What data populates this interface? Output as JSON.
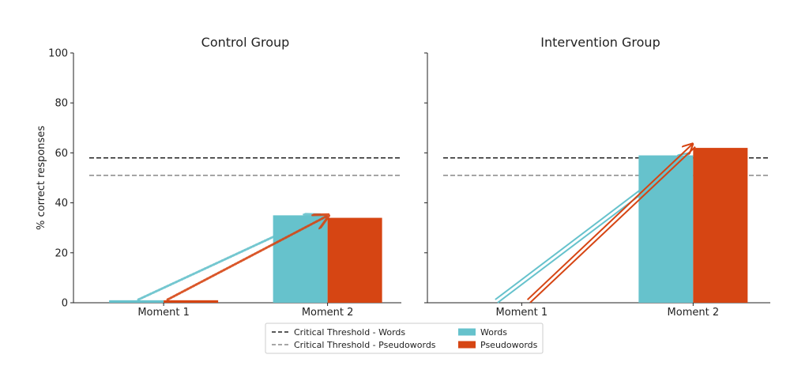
{
  "chart_data": [
    {
      "type": "bar",
      "title": "Control Group",
      "ylabel": "% correct responses",
      "ylim": [
        0,
        100
      ],
      "yticks": [
        0,
        20,
        40,
        60,
        80,
        100
      ],
      "categories": [
        "Moment 1",
        "Moment 2"
      ],
      "series": [
        {
          "name": "Words",
          "color": "#66c2cc",
          "values": [
            1,
            35
          ]
        },
        {
          "name": "Pseudowords",
          "color": "#d64513",
          "values": [
            1,
            34
          ]
        }
      ],
      "thresholds": [
        {
          "name": "Critical Threshold - Words",
          "value": 58,
          "color": "#222222"
        },
        {
          "name": "Critical Threshold - Pseudowords",
          "value": 51,
          "color": "#888888"
        }
      ],
      "arrows": [
        {
          "series": "Words",
          "from": [
            "Moment 1",
            0
          ],
          "to": [
            "Moment 2",
            35
          ],
          "style": "dotted-trail"
        },
        {
          "series": "Pseudowords",
          "from": [
            "Moment 1",
            0
          ],
          "to": [
            "Moment 2",
            35
          ],
          "style": "dotted-trail"
        }
      ]
    },
    {
      "type": "bar",
      "title": "Intervention Group",
      "ylim": [
        0,
        100
      ],
      "categories": [
        "Moment 1",
        "Moment 2"
      ],
      "series": [
        {
          "name": "Words",
          "color": "#66c2cc",
          "values": [
            0,
            59
          ]
        },
        {
          "name": "Pseudowords",
          "color": "#d64513",
          "values": [
            0,
            62
          ]
        }
      ],
      "thresholds": [
        {
          "name": "Critical Threshold - Words",
          "value": 58,
          "color": "#222222"
        },
        {
          "name": "Critical Threshold - Pseudowords",
          "value": 51,
          "color": "#888888"
        }
      ],
      "arrows": [
        {
          "series": "Words",
          "from": [
            "Moment 1",
            0
          ],
          "to": [
            "Moment 2",
            59
          ],
          "style": "double-line"
        },
        {
          "series": "Pseudowords",
          "from": [
            "Moment 1",
            0
          ],
          "to": [
            "Moment 2",
            63
          ],
          "style": "double-line"
        }
      ]
    }
  ],
  "legend": {
    "placement": "bottom-center",
    "items": [
      {
        "label": "Critical Threshold - Words",
        "kind": "dashed-line",
        "color": "#222222"
      },
      {
        "label": "Critical Threshold - Pseudowords",
        "kind": "dashed-line",
        "color": "#888888"
      },
      {
        "label": "Words",
        "kind": "patch",
        "color": "#66c2cc"
      },
      {
        "label": "Pseudowords",
        "kind": "patch",
        "color": "#d64513"
      }
    ]
  }
}
